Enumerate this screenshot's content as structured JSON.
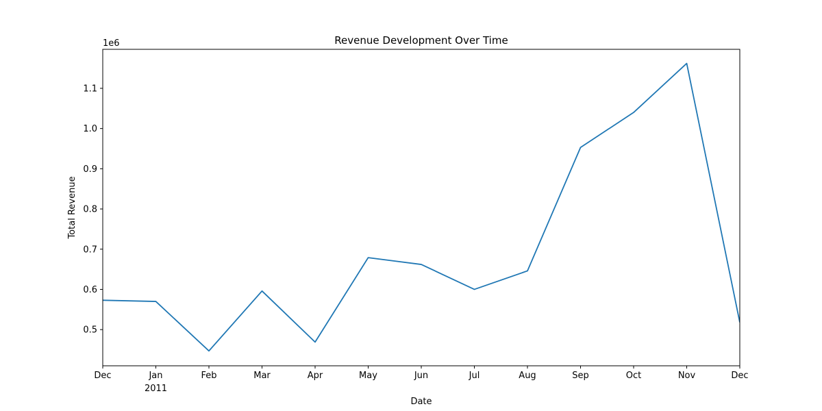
{
  "chart_data": {
    "type": "line",
    "title": "Revenue Development Over Time",
    "xlabel": "Date",
    "ylabel": "Total Revenue",
    "y_offset_label": "1e6",
    "ylim": [
      0.41,
      1.197
    ],
    "y_ticks": [
      0.5,
      0.6,
      0.7,
      0.8,
      0.9,
      1.0,
      1.1
    ],
    "y_tick_labels": [
      "0.5",
      "0.6",
      "0.7",
      "0.8",
      "0.9",
      "1.0",
      "1.1"
    ],
    "x": [
      "2010-12",
      "2011-01",
      "2011-02",
      "2011-03",
      "2011-04",
      "2011-05",
      "2011-06",
      "2011-07",
      "2011-08",
      "2011-09",
      "2011-10",
      "2011-11",
      "2011-12"
    ],
    "x_tick_labels": [
      "Dec",
      "Jan",
      "Feb",
      "Mar",
      "Apr",
      "May",
      "Jun",
      "Jul",
      "Aug",
      "Sep",
      "Oct",
      "Nov",
      "Dec"
    ],
    "x_year_label": "2011",
    "series": [
      {
        "values": [
          0.573,
          0.57,
          0.447,
          0.596,
          0.469,
          0.679,
          0.662,
          0.6,
          0.646,
          0.953,
          1.04,
          1.162,
          0.518
        ],
        "color": "#1f77b4"
      }
    ],
    "grid": false,
    "legend": "none"
  }
}
